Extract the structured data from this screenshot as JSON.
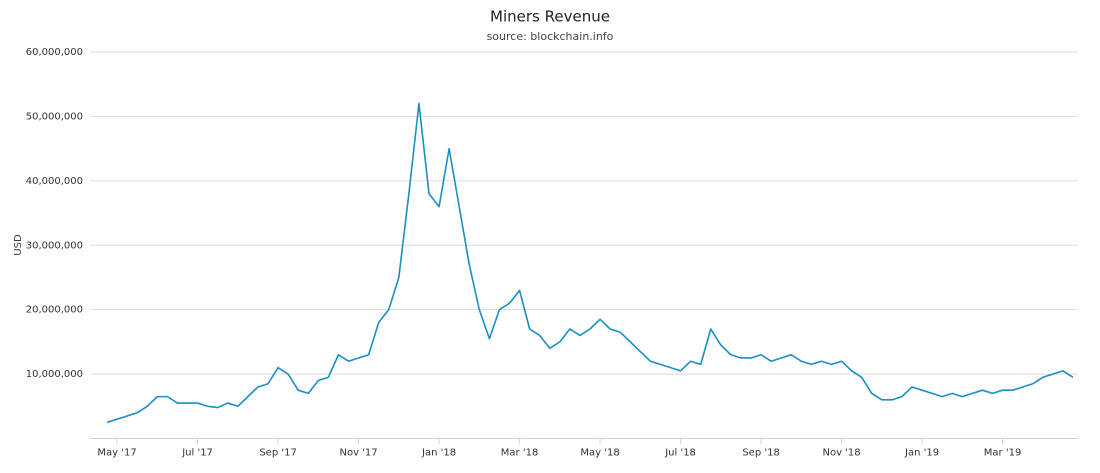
{
  "chart_data": {
    "type": "line",
    "title": "Miners Revenue",
    "subtitle": "source: blockchain.info",
    "y_label": "USD",
    "color": "#1a8fc4",
    "grid": true,
    "ylim": [
      0,
      60000000
    ],
    "yticks": [
      {
        "value": 10000000,
        "label": "10,000,000"
      },
      {
        "value": 20000000,
        "label": "20,000,000"
      },
      {
        "value": 30000000,
        "label": "30,000,000"
      },
      {
        "value": 40000000,
        "label": "40,000,000"
      },
      {
        "value": 50000000,
        "label": "50,000,000"
      },
      {
        "value": 60000000,
        "label": "60,000,000"
      }
    ],
    "categories": [
      null,
      "May '17",
      null,
      null,
      null,
      null,
      null,
      null,
      null,
      "Jul '17",
      null,
      null,
      null,
      null,
      null,
      null,
      null,
      "Sep '17",
      null,
      null,
      null,
      null,
      null,
      null,
      null,
      "Nov '17",
      null,
      null,
      null,
      null,
      null,
      null,
      null,
      "Jan '18",
      null,
      null,
      null,
      null,
      null,
      null,
      null,
      "Mar '18",
      null,
      null,
      null,
      null,
      null,
      null,
      null,
      "May '18",
      null,
      null,
      null,
      null,
      null,
      null,
      null,
      "Jul '18",
      null,
      null,
      null,
      null,
      null,
      null,
      null,
      "Sep '18",
      null,
      null,
      null,
      null,
      null,
      null,
      null,
      "Nov '18",
      null,
      null,
      null,
      null,
      null,
      null,
      null,
      "Jan '19",
      null,
      null,
      null,
      null,
      null,
      null,
      null,
      "Mar '19",
      null,
      null,
      null,
      null,
      null,
      null,
      null
    ],
    "values": [
      2500000,
      3000000,
      3500000,
      4000000,
      5000000,
      6500000,
      6500000,
      5500000,
      5500000,
      5500000,
      5000000,
      4800000,
      5500000,
      5000000,
      6500000,
      8000000,
      8500000,
      11000000,
      10000000,
      7500000,
      7000000,
      9000000,
      9500000,
      13000000,
      12000000,
      12500000,
      13000000,
      18000000,
      20000000,
      25000000,
      38000000,
      52000000,
      38000000,
      36000000,
      45000000,
      36000000,
      27000000,
      20000000,
      15500000,
      20000000,
      21000000,
      23000000,
      17000000,
      16000000,
      14000000,
      15000000,
      17000000,
      16000000,
      17000000,
      18500000,
      17000000,
      16500000,
      15000000,
      13500000,
      12000000,
      11500000,
      11000000,
      10500000,
      12000000,
      11500000,
      17000000,
      14500000,
      13000000,
      12500000,
      12500000,
      13000000,
      12000000,
      12500000,
      13000000,
      12000000,
      11500000,
      12000000,
      11500000,
      12000000,
      10500000,
      9500000,
      7000000,
      6000000,
      6000000,
      6500000,
      8000000,
      7500000,
      7000000,
      6500000,
      7000000,
      6500000,
      7000000,
      7500000,
      7000000,
      7500000,
      7500000,
      8000000,
      8500000,
      9500000,
      10000000,
      10500000,
      9500000
    ]
  }
}
